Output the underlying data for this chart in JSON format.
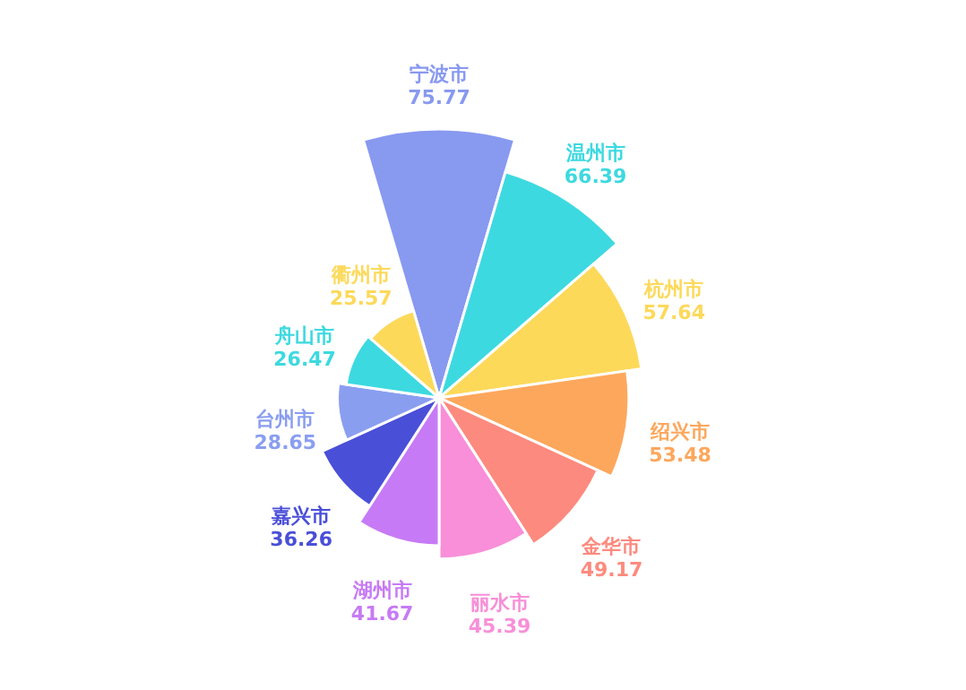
{
  "chart_data": {
    "type": "other",
    "categories": [
      "宁波市",
      "温州市",
      "杭州市",
      "绍兴市",
      "金华市",
      "丽水市",
      "湖州市",
      "嘉兴市",
      "台州市",
      "舟山市",
      "衢州市"
    ],
    "values": [
      75.77,
      66.39,
      57.64,
      53.48,
      49.17,
      45.39,
      41.67,
      36.26,
      28.65,
      26.47,
      25.57
    ],
    "colors": [
      "#8899f0",
      "#3dd9e0",
      "#fdd95a",
      "#fda75c",
      "#fd8a7e",
      "#f88fd8",
      "#c77af5",
      "#4a4fd8",
      "#8a9ef0",
      "#3dd9e0",
      "#fdd95a"
    ],
    "data_labels": true
  }
}
